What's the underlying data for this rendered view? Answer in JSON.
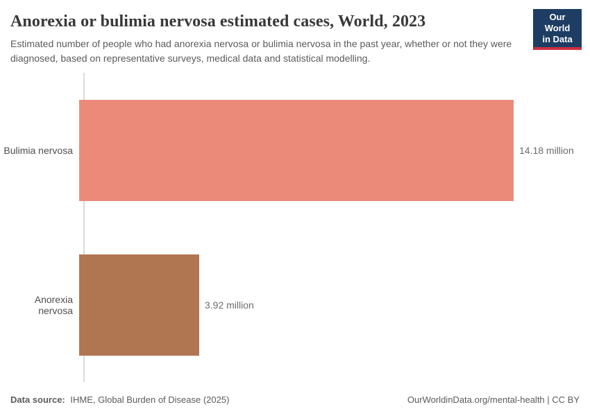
{
  "header": {
    "title": "Anorexia or bulimia nervosa estimated cases, World, 2023",
    "subtitle": "Estimated number of people who had anorexia nervosa or bulimia nervosa in the past year, whether or not they were diagnosed, based on representative surveys, medical data and statistical modelling.",
    "logo": {
      "line1": "Our World",
      "line2": "in Data",
      "bg_color": "#1d3d63",
      "accent_color": "#cf2e41",
      "text_color": "#ffffff"
    }
  },
  "chart_data": {
    "type": "bar",
    "orientation": "horizontal",
    "title": "Anorexia or bulimia nervosa estimated cases, World, 2023",
    "categories": [
      "Bulimia nervosa",
      "Anorexia nervosa"
    ],
    "values": [
      14.18,
      3.92
    ],
    "unit": "million",
    "value_labels": [
      "14.18 million",
      "3.92 million"
    ],
    "colors": [
      "#EC8A7A",
      "#B07652"
    ],
    "xlim": [
      0,
      14.18
    ],
    "grid": false,
    "legend": false,
    "axis_line_color": "#dadada"
  },
  "footer": {
    "datasource_label": "Data source:",
    "datasource_value": "IHME, Global Burden of Disease (2025)",
    "attribution": "OurWorldinData.org/mental-health | CC BY"
  }
}
